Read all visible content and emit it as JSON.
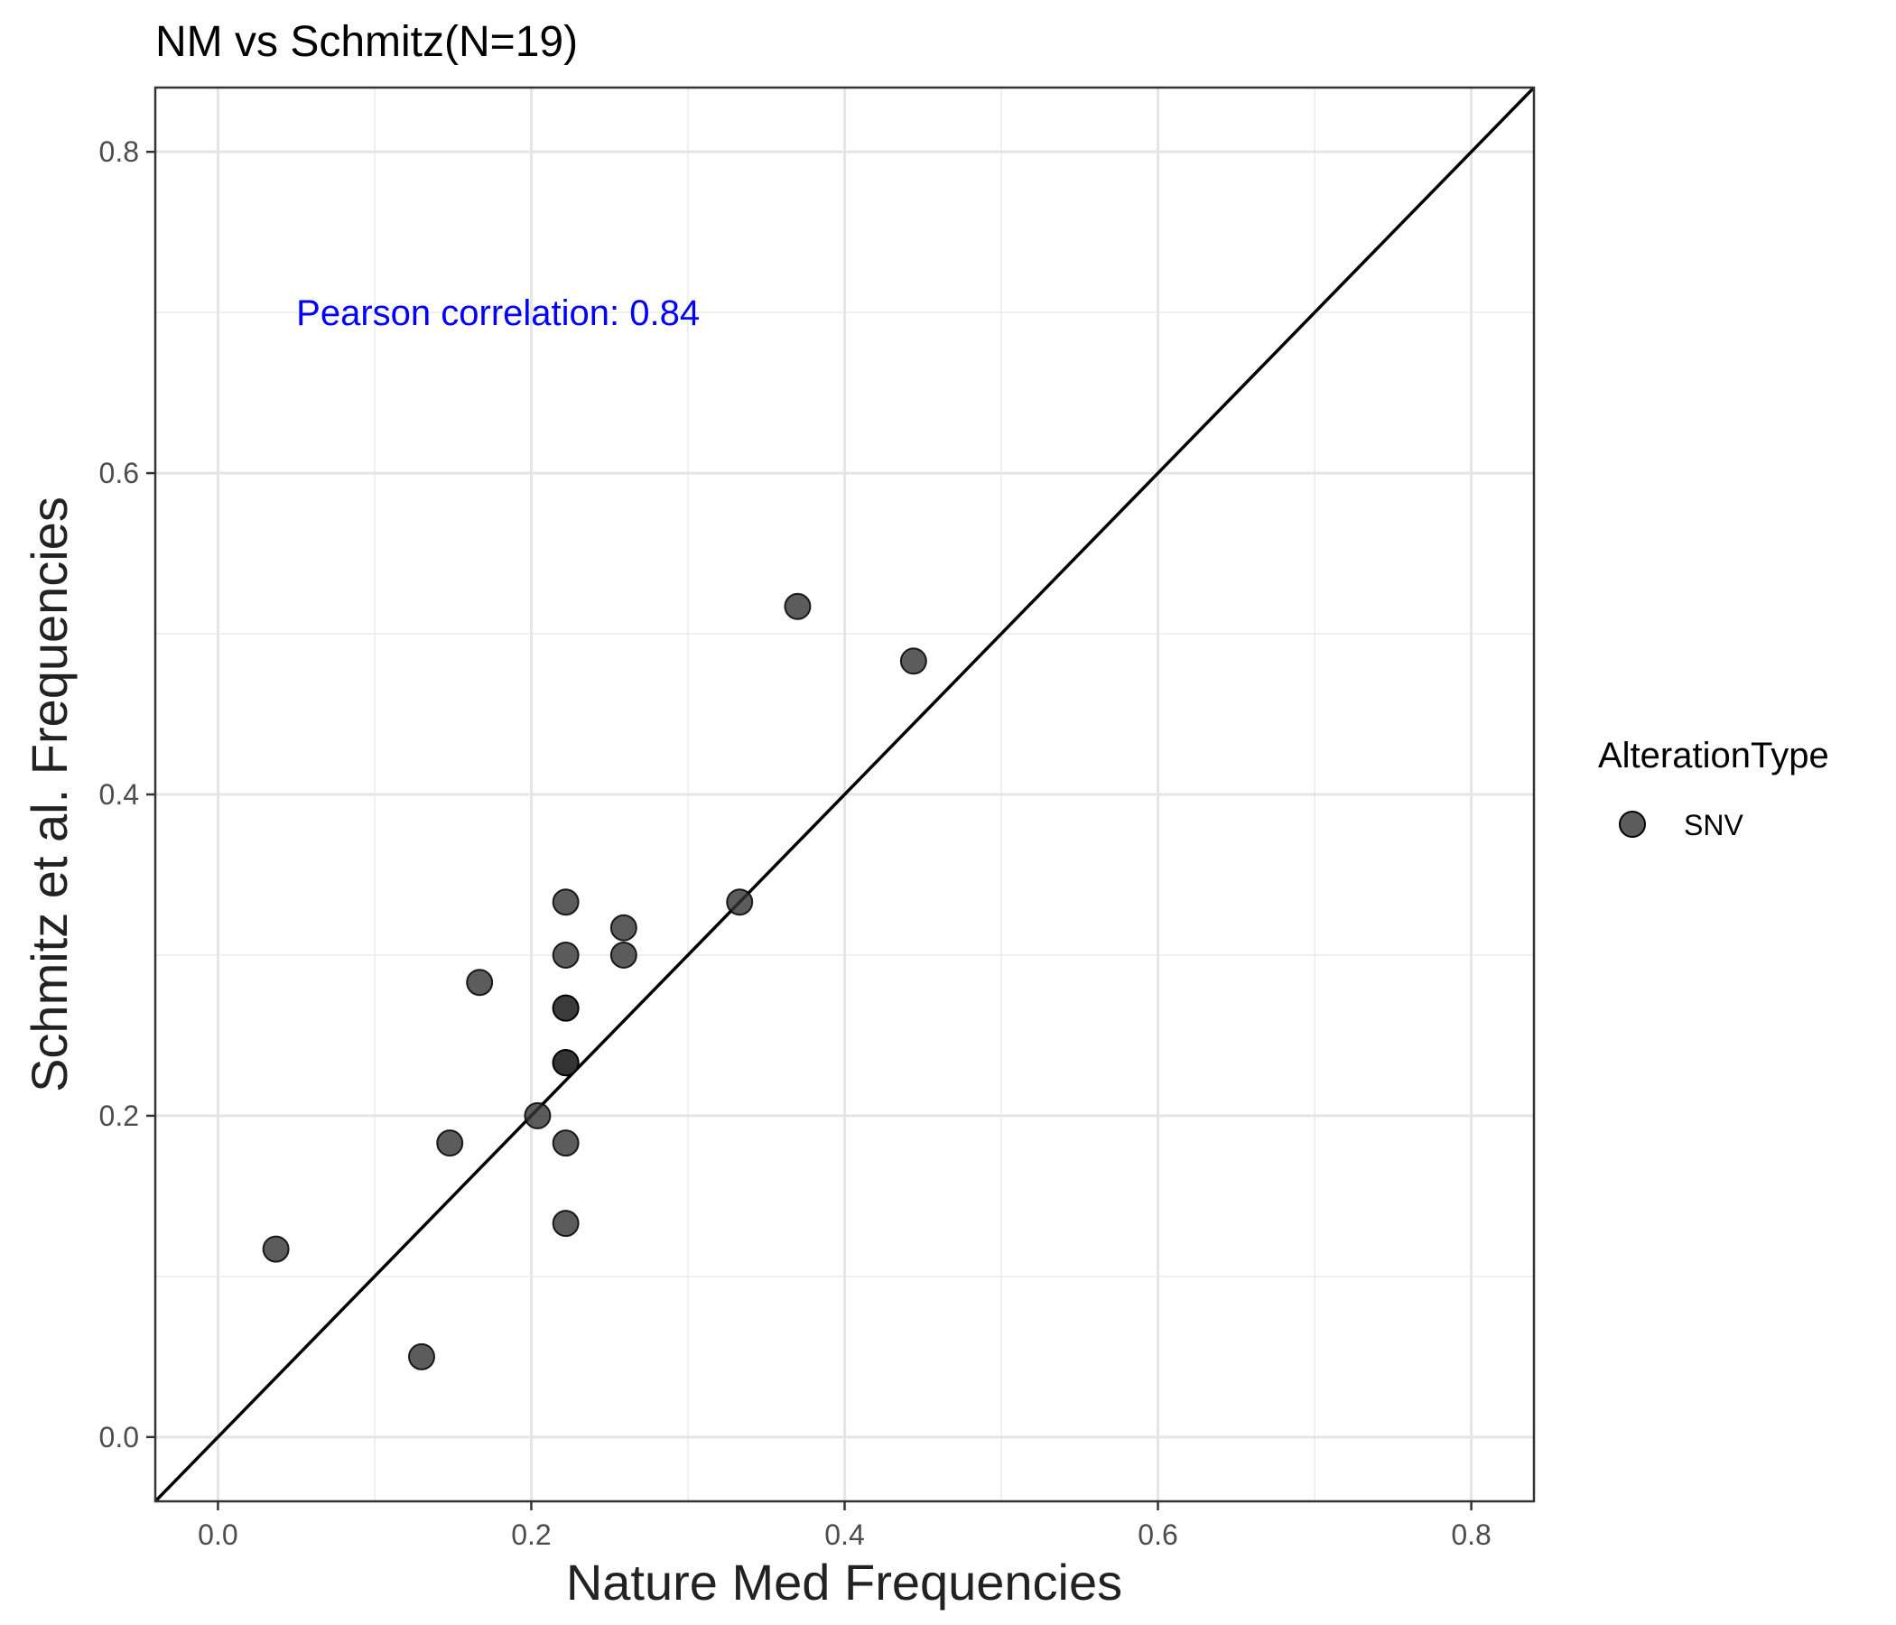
{
  "chart_data": {
    "type": "scatter",
    "title": "NM vs Schmitz(N=19)",
    "xlabel": "Nature Med Frequencies",
    "ylabel": "Schmitz et al. Frequencies",
    "xlim": [
      -0.04,
      0.84
    ],
    "ylim": [
      -0.04,
      0.84
    ],
    "xticks": [
      "0.0",
      "0.2",
      "0.4",
      "0.6",
      "0.8"
    ],
    "yticks": [
      "0.0",
      "0.2",
      "0.4",
      "0.6",
      "0.8"
    ],
    "grid": true,
    "reference_line": "y = x",
    "annotation": {
      "text": "Pearson correlation: 0.84",
      "x": 0.05,
      "y": 0.7,
      "color": "#0000ff"
    },
    "legend": {
      "title": "AlterationType",
      "position": "right",
      "entries": [
        "SNV"
      ]
    },
    "series": [
      {
        "name": "SNV",
        "color": "#333333",
        "opacity": 0.8,
        "points": [
          {
            "x": 0.037,
            "y": 0.117
          },
          {
            "x": 0.13,
            "y": 0.05
          },
          {
            "x": 0.148,
            "y": 0.183
          },
          {
            "x": 0.167,
            "y": 0.283
          },
          {
            "x": 0.204,
            "y": 0.2
          },
          {
            "x": 0.222,
            "y": 0.333
          },
          {
            "x": 0.222,
            "y": 0.3
          },
          {
            "x": 0.222,
            "y": 0.267
          },
          {
            "x": 0.222,
            "y": 0.267
          },
          {
            "x": 0.222,
            "y": 0.233
          },
          {
            "x": 0.222,
            "y": 0.233
          },
          {
            "x": 0.222,
            "y": 0.233
          },
          {
            "x": 0.222,
            "y": 0.183
          },
          {
            "x": 0.222,
            "y": 0.133
          },
          {
            "x": 0.259,
            "y": 0.317
          },
          {
            "x": 0.259,
            "y": 0.3
          },
          {
            "x": 0.333,
            "y": 0.333
          },
          {
            "x": 0.37,
            "y": 0.517
          },
          {
            "x": 0.444,
            "y": 0.483
          }
        ]
      }
    ]
  }
}
